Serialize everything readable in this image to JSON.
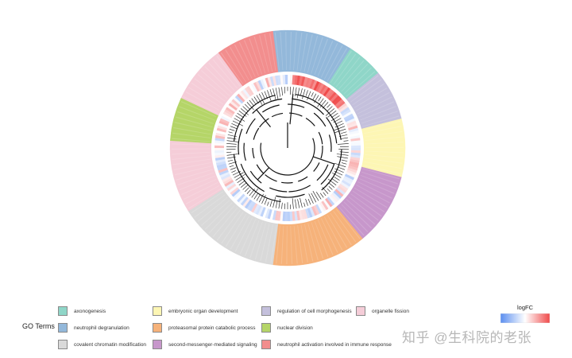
{
  "chart_data": {
    "type": "circular-heatmap",
    "legend": {
      "title": "GO Terms",
      "items": [
        {
          "label": "axonogenesis",
          "color": "#8fd6c8"
        },
        {
          "label": "neutrophil degranulation",
          "color": "#93b8da"
        },
        {
          "label": "covalent chromatin modification",
          "color": "#d9d9d9"
        },
        {
          "label": "embryonic organ development",
          "color": "#fdf6b4"
        },
        {
          "label": "proteasomal protein catabolic process",
          "color": "#f6b27a"
        },
        {
          "label": "second-messenger-mediated signaling",
          "color": "#c797cb"
        },
        {
          "label": "regulation of cell morphogenesis",
          "color": "#c4c0dc"
        },
        {
          "label": "nuclear division",
          "color": "#b5d568"
        },
        {
          "label": "neutrophil activation involved in immune response",
          "color": "#f28e8e"
        },
        {
          "label": "organelle fission",
          "color": "#f5cdd8"
        }
      ]
    },
    "scale": {
      "title": "logFC",
      "low_color": "#5a8ef0",
      "mid_color": "#ffffff",
      "high_color": "#f04a4a"
    },
    "outer_ring_segments": [
      {
        "term": "neutrophil degranulation",
        "fraction": 0.11
      },
      {
        "term": "axonogenesis",
        "fraction": 0.05
      },
      {
        "term": "regulation of cell morphogenesis",
        "fraction": 0.07
      },
      {
        "term": "embryonic organ development",
        "fraction": 0.08
      },
      {
        "term": "second-messenger-mediated signaling",
        "fraction": 0.1
      },
      {
        "term": "proteasomal protein catabolic process",
        "fraction": 0.13
      },
      {
        "term": "covalent chromatin modification",
        "fraction": 0.14
      },
      {
        "term": "organelle fission",
        "fraction": 0.1
      },
      {
        "term": "nuclear division",
        "fraction": 0.06
      },
      {
        "term": "organelle fission",
        "fraction": 0.08
      },
      {
        "term": "neutrophil activation involved in immune response",
        "fraction": 0.08
      }
    ]
  },
  "watermark": "知乎 @生科院的老张"
}
